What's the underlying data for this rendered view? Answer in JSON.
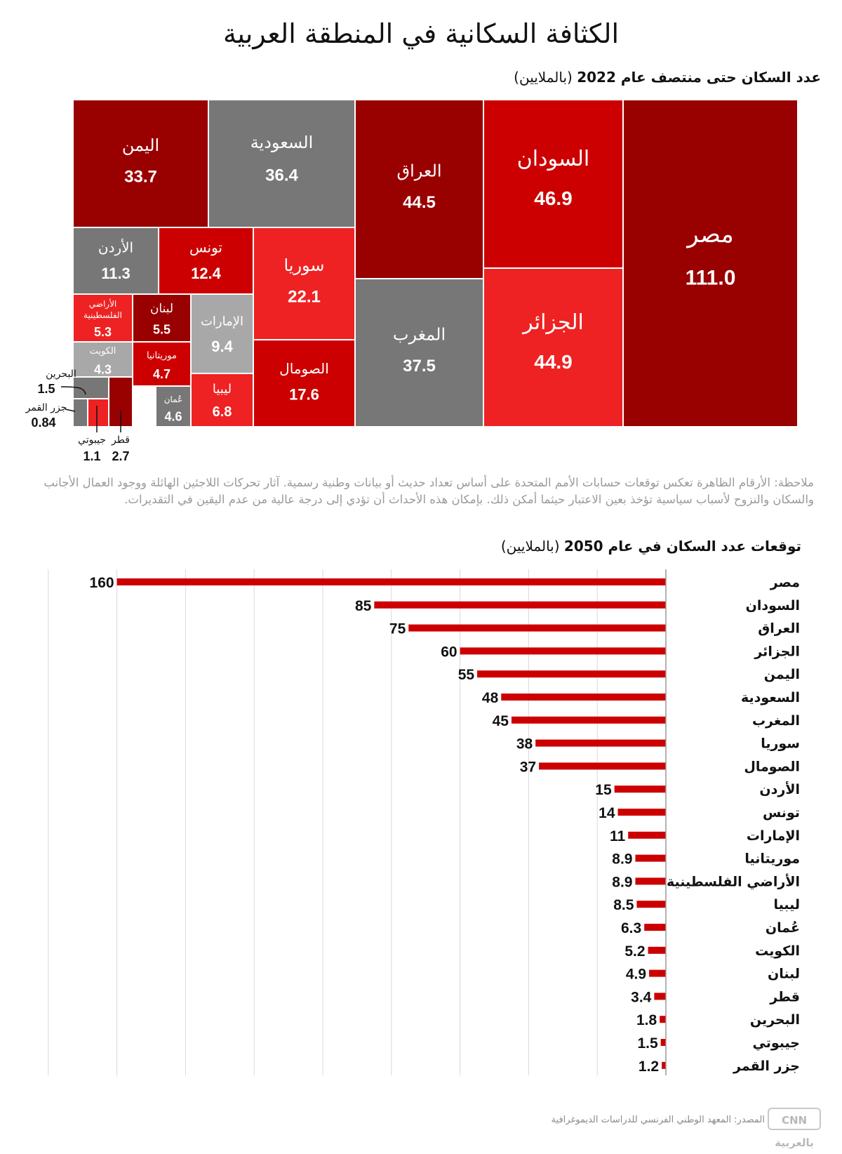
{
  "title": "الكثافة السكانية في المنطقة العربية",
  "section1": {
    "label": "عدد السكان حتى منتصف عام 2022",
    "unit": "(بالملايين)"
  },
  "note": "ملاحظة: الأرقام الظاهرة تعكس توقعات حسابات الأمم المتحدة على أساس تعداد حديث أو بيانات وطنية رسمية. آثار تحركات اللاجئين الهائلة ووجود العمال الأجانب والسكان والنزوح لأسباب سياسية تؤخذ بعين الاعتبار حيثما أمكن ذلك. بإمكان هذه الأحداث أن تؤدي إلى درجة عالية من عدم اليقين في التقديرات.",
  "section2": {
    "label": "توقعات عدد السكان في عام 2050",
    "unit": "(بالملايين)"
  },
  "footer": {
    "source": "المصدر: المعهد الوطني الفرنسي للدراسات الديموغرافية",
    "logo": "CNN بالعربية"
  },
  "colors": {
    "dark_red": "#990000",
    "red": "#cc0000",
    "bright_red": "#ee2222",
    "gray": "#777777",
    "light_gray": "#a8a8a8",
    "bar": "#cc0000"
  },
  "chart_data": [
    {
      "type": "treemap",
      "title": "عدد السكان حتى منتصف عام 2022 (بالملايين)",
      "items": [
        {
          "name": "مصر",
          "value": "111.0",
          "color": "#990000"
        },
        {
          "name": "السودان",
          "value": "46.9",
          "color": "#cc0000"
        },
        {
          "name": "الجزائر",
          "value": "44.9",
          "color": "#ee2222"
        },
        {
          "name": "العراق",
          "value": "44.5",
          "color": "#990000"
        },
        {
          "name": "المغرب",
          "value": "37.5",
          "color": "#777777"
        },
        {
          "name": "السعودية",
          "value": "36.4",
          "color": "#777777"
        },
        {
          "name": "اليمن",
          "value": "33.7",
          "color": "#990000"
        },
        {
          "name": "سوريا",
          "value": "22.1",
          "color": "#ee2222"
        },
        {
          "name": "الصومال",
          "value": "17.6",
          "color": "#cc0000"
        },
        {
          "name": "تونس",
          "value": "12.4",
          "color": "#cc0000"
        },
        {
          "name": "الأردن",
          "value": "11.3",
          "color": "#777777"
        },
        {
          "name": "الإمارات",
          "value": "9.4",
          "color": "#a8a8a8"
        },
        {
          "name": "ليبيا",
          "value": "6.8",
          "color": "#ee2222"
        },
        {
          "name": "لبنان",
          "value": "5.5",
          "color": "#990000"
        },
        {
          "name": "الأراضي الفلسطينية",
          "value": "5.3",
          "color": "#ee2222"
        },
        {
          "name": "موريتانيا",
          "value": "4.7",
          "color": "#cc0000"
        },
        {
          "name": "عُمان",
          "value": "4.6",
          "color": "#777777"
        },
        {
          "name": "الكويت",
          "value": "4.3",
          "color": "#a8a8a8"
        },
        {
          "name": "قطر",
          "value": "2.7",
          "color": "#990000"
        },
        {
          "name": "البحرين",
          "value": "1.5",
          "color": "#777777"
        },
        {
          "name": "جيبوتي",
          "value": "1.1",
          "color": "#ee2222"
        },
        {
          "name": "جزر القمر",
          "value": "0.84",
          "color": "#777777"
        }
      ]
    },
    {
      "type": "bar",
      "orientation": "horizontal",
      "title": "توقعات عدد السكان في عام 2050 (بالملايين)",
      "categories": [
        "مصر",
        "السودان",
        "العراق",
        "الجزائر",
        "اليمن",
        "السعودية",
        "المغرب",
        "سوريا",
        "الصومال",
        "الأردن",
        "تونس",
        "الإمارات",
        "موريتانيا",
        "الأراضي الفلسطينية",
        "ليبيا",
        "عُمان",
        "الكويت",
        "لبنان",
        "قطر",
        "البحرين",
        "جيبوتي",
        "جزر القمر"
      ],
      "values": [
        160,
        85,
        75,
        60,
        55,
        48,
        45,
        38,
        37,
        15,
        14,
        11,
        8.9,
        8.9,
        8.5,
        6.3,
        5.2,
        4.9,
        3.4,
        1.8,
        1.5,
        1.2
      ],
      "value_labels": [
        "160",
        "85",
        "75",
        "60",
        "55",
        "48",
        "45",
        "38",
        "37",
        "15",
        "14",
        "11",
        "8.9",
        "8.9",
        "8.5",
        "6.3",
        "5.2",
        "4.9",
        "3.4",
        "1.8",
        "1.5",
        "1.2"
      ],
      "xlim": [
        0,
        180
      ],
      "grid": true
    }
  ]
}
